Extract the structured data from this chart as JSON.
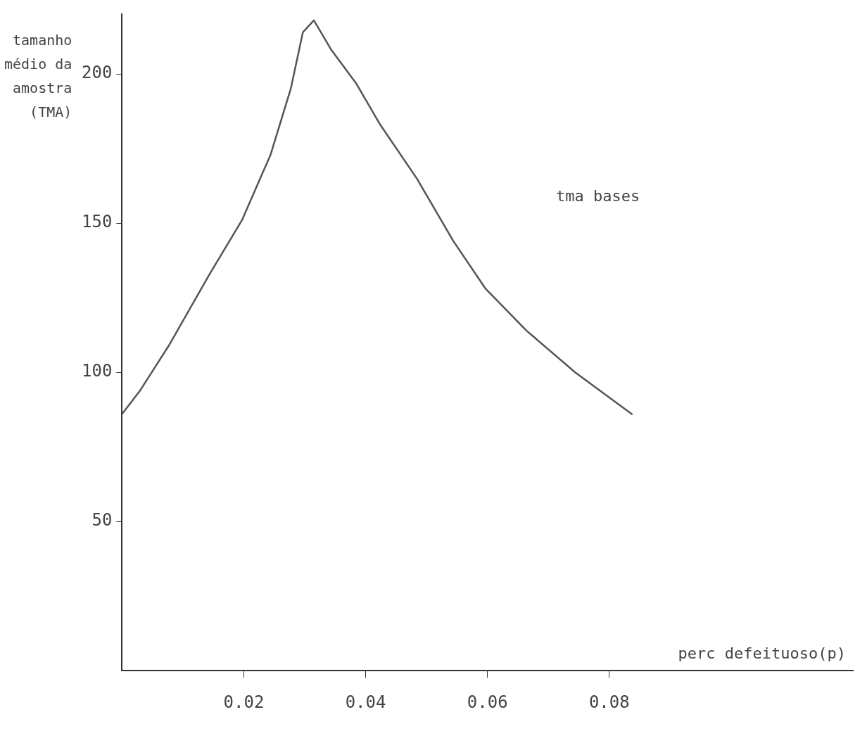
{
  "chart_data": {
    "type": "line",
    "xlabel": "perc defeituoso(p)",
    "ylabel": "tamanho\nmédio da\namostra\n(TMA)",
    "xlim": [
      0,
      0.12
    ],
    "xticks": [
      0.02,
      0.04,
      0.06,
      0.08
    ],
    "ylim": [
      0,
      220
    ],
    "yticks": [
      50,
      100,
      150,
      200
    ],
    "grid": false,
    "legend": false,
    "marker": "none",
    "line_style": "solid",
    "series": [
      {
        "name": "tma bases",
        "color": "#555555",
        "x": [
          0,
          0.003,
          0.0077,
          0.0144,
          0.0197,
          0.0244,
          0.0277,
          0.0297,
          0.0315,
          0.0344,
          0.0384,
          0.0424,
          0.0484,
          0.0544,
          0.0597,
          0.0664,
          0.0744,
          0.0837
        ],
        "values": [
          86,
          94,
          109,
          133,
          151,
          173,
          195,
          214,
          218,
          208,
          197,
          183,
          165,
          144,
          128,
          114,
          100,
          86
        ]
      }
    ]
  }
}
